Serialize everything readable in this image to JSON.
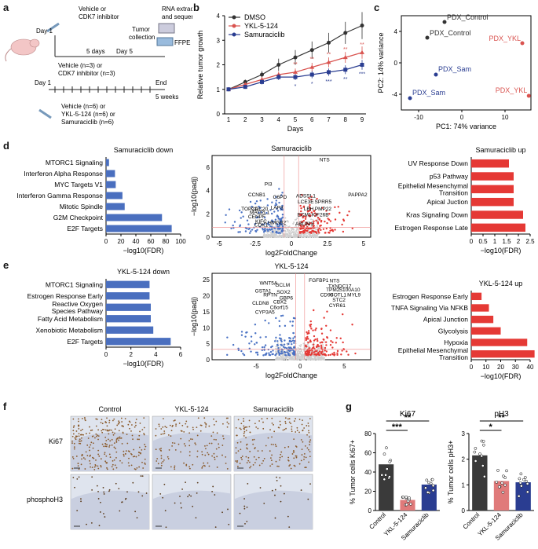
{
  "labels": {
    "a": "a",
    "b": "b",
    "c": "c",
    "d": "d",
    "e": "e",
    "f": "f",
    "g": "g"
  },
  "panel_a": {
    "day1_top": "Day 1",
    "treat_top": "Vehicle or\nCDK7 inhibitor",
    "five_days": "5 days",
    "day5": "Day 5",
    "rna": "RNA extraction\nand sequencing",
    "tumor_collection": "Tumor\ncollection",
    "ffpe": "FFPE IHC",
    "vehicle_n3": "Vehicle (n=3) or",
    "cdk7_n3": "CDK7 inhibitor (n=3)",
    "day1_bottom": "Day 1",
    "end": "End",
    "five_weeks": "5 weeks",
    "bottom_groups": [
      "Vehicle (n=6) or",
      "YKL-5-124 (n=6) or",
      "Samuraciclib (n=6)"
    ]
  },
  "colors": {
    "dmso": "#333333",
    "ykl": "#d9534f",
    "sam": "#2a3d91",
    "bar_blue": "#4a6fbf",
    "bar_red": "#e53935",
    "volc_gray": "#cfcfcf",
    "volc_blue": "#4a72c4",
    "volc_red": "#e53935",
    "ki67_control": "#3a3a3a",
    "ki67_ykl": "#e07a7a",
    "ki67_sam": "#2a3d91"
  },
  "chart_data": [
    {
      "id": "b",
      "type": "line",
      "ylabel": "Relative tumor growth",
      "xlabel": "Days",
      "x": [
        1,
        2,
        3,
        4,
        5,
        6,
        7,
        8,
        9
      ],
      "ylim": [
        0,
        4
      ],
      "yticks": [
        0,
        1,
        2,
        3,
        4
      ],
      "legend": "top-left",
      "series": [
        {
          "name": "DMSO",
          "values": [
            1.0,
            1.3,
            1.6,
            2.0,
            2.3,
            2.6,
            2.9,
            3.3,
            3.6
          ],
          "err": [
            0.05,
            0.1,
            0.15,
            0.25,
            0.3,
            0.35,
            0.4,
            0.45,
            0.55
          ]
        },
        {
          "name": "YKL-5-124",
          "values": [
            1.0,
            1.2,
            1.4,
            1.6,
            1.7,
            1.9,
            2.1,
            2.3,
            2.5
          ],
          "err": [
            0.05,
            0.08,
            0.1,
            0.12,
            0.15,
            0.18,
            0.2,
            0.22,
            0.25
          ]
        },
        {
          "name": "Samuraciclib",
          "values": [
            1.0,
            1.1,
            1.3,
            1.5,
            1.5,
            1.6,
            1.7,
            1.8,
            2.0
          ],
          "err": [
            0.05,
            0.08,
            0.1,
            0.12,
            0.12,
            0.15,
            0.15,
            0.18,
            0.2
          ]
        }
      ],
      "sig_red": [
        "",
        "",
        "",
        "",
        "**",
        "**",
        "**",
        "**",
        "**"
      ],
      "sig_blue": [
        "",
        "",
        "",
        "",
        "*",
        "*",
        "***",
        "**",
        "***"
      ]
    },
    {
      "id": "c",
      "type": "scatter",
      "xlabel": "PC1: 74% variance",
      "ylabel": "PC2: 14% variance",
      "xlim": [
        -14,
        16
      ],
      "ylim": [
        -6,
        6
      ],
      "xticks": [
        -10,
        0,
        10
      ],
      "yticks": [
        -4,
        0,
        4
      ],
      "points": [
        {
          "x": -4,
          "y": 5.2,
          "label": "PDX_Control",
          "color": "#333333"
        },
        {
          "x": -8,
          "y": 3.2,
          "label": "PDX_Control",
          "color": "#333333"
        },
        {
          "x": 14,
          "y": 2.5,
          "label": "PDX_YKL",
          "color": "#d9534f"
        },
        {
          "x": 15.5,
          "y": -4.2,
          "label": "PDX_YKL",
          "color": "#d9534f"
        },
        {
          "x": -6,
          "y": -1.5,
          "label": "PDX_Sam",
          "color": "#2a3d91"
        },
        {
          "x": -12,
          "y": -4.5,
          "label": "PDX_Sam",
          "color": "#2a3d91"
        }
      ]
    },
    {
      "id": "d_down",
      "type": "bar",
      "title": "Samuraciclib down",
      "xlabel": "−log10(FDR)",
      "xlim": [
        0,
        100
      ],
      "xticks": [
        0,
        20,
        40,
        60,
        80,
        100
      ],
      "categories": [
        "MTORC1 Signaling",
        "Interferon Alpha Response",
        "MYC Targets V1",
        "Interferon Gamma Response",
        "Mitotic Spindle",
        "G2M Checkpoint",
        "E2F Targets"
      ],
      "values": [
        4,
        12,
        13,
        22,
        25,
        75,
        88
      ]
    },
    {
      "id": "d_volcano",
      "type": "scatter",
      "title": "Samuraciclib",
      "xlabel": "log2FoldChange",
      "ylabel": "−log10(padj)",
      "xticks": [
        -5,
        -2.5,
        0,
        2.5,
        5
      ],
      "yticks": [
        0,
        2,
        4,
        6
      ],
      "genes": [
        "PI3",
        "CCNB1",
        "TOP2A",
        "CDC20",
        "MAD2L1",
        "KIFC",
        "CENPF",
        "CDK1",
        "G6PD",
        "LAP3",
        "HMGB2",
        "ADSSL1",
        "LCE3E",
        "LBH",
        "ECM1",
        "ABLIM3",
        "SPRR5",
        "PMP22",
        "KIF26B",
        "NTS",
        "PAPPA2"
      ]
    },
    {
      "id": "d_up",
      "type": "bar",
      "title": "Samuraciclib up",
      "xlabel": "−log10(FDR)",
      "xlim": [
        0,
        2.5
      ],
      "xticks": [
        0,
        0.5,
        1,
        1.5,
        2,
        2.5
      ],
      "categories": [
        "UV Response Down",
        "p53 Pathway",
        "Epithelial Mesenchymal\nTransition",
        "Apical Juction",
        "Kras Signaling Down",
        "Estrogen Response Late"
      ],
      "values": [
        1.6,
        1.8,
        1.8,
        1.8,
        2.2,
        2.3
      ]
    },
    {
      "id": "e_down",
      "type": "bar",
      "title": "YKL-5-124 down",
      "xlabel": "−log10(FDR)",
      "xlim": [
        0,
        6
      ],
      "xticks": [
        0,
        2,
        4,
        6
      ],
      "categories": [
        "MTORC1 Signaling",
        "Estrogen Response Early",
        "Reactive Oxygen\nSpecies Pathway",
        "Fatty Acid Metabolism",
        "Xenobiotic Metabolism",
        "E2F Targets"
      ],
      "values": [
        3.5,
        3.5,
        3.6,
        3.6,
        3.8,
        5.2
      ]
    },
    {
      "id": "e_volcano",
      "type": "scatter",
      "title": "YKL-5-124",
      "xlabel": "log2FoldChange",
      "ylabel": "−log10(padj)",
      "xticks": [
        -5,
        0,
        5
      ],
      "yticks": [
        0,
        5,
        10,
        15,
        20,
        25
      ],
      "genes": [
        "WNT5A",
        "GCLM",
        "GSTA1",
        "SOX2",
        "RPTN",
        "GBP6",
        "CBX2",
        "CLDN8",
        "C6orf15",
        "CYP3A5",
        "FGFBP1",
        "NTS",
        "TXNDC17",
        "TPM2",
        "S100A10",
        "CD99",
        "COTL1",
        "MYL9",
        "STC2",
        "CYR61"
      ]
    },
    {
      "id": "e_up",
      "type": "bar",
      "title": "YKL-5-124 up",
      "xlabel": "−log10(FDR)",
      "xlim": [
        0,
        40
      ],
      "xticks": [
        0,
        10,
        20,
        30,
        40
      ],
      "categories": [
        "Estrogen Response Early",
        "TNFA Signaling Via NFKB",
        "Apical Junction",
        "Glycolysis",
        "Hypoxia",
        "Epithelial Mesenchymal\nTransition"
      ],
      "values": [
        7,
        12,
        15,
        20,
        38,
        43
      ]
    },
    {
      "id": "g_ki67",
      "type": "bar",
      "title": "Ki67",
      "ylabel": "% Tumor cells Ki67+",
      "ylim": [
        0,
        80
      ],
      "yticks": [
        0,
        20,
        40,
        60,
        80
      ],
      "categories": [
        "Control",
        "YKL-5-124",
        "Samuraciclib"
      ],
      "values": [
        48,
        11,
        27
      ],
      "sig": [
        {
          "from": 0,
          "to": 1,
          "label": "***"
        },
        {
          "from": 0,
          "to": 2,
          "label": "**"
        }
      ]
    },
    {
      "id": "g_ph3",
      "type": "bar",
      "title": "pH3",
      "ylabel": "% Tumor cells pH3+",
      "ylim": [
        0,
        3
      ],
      "yticks": [
        0,
        1,
        2,
        3
      ],
      "categories": [
        "Control",
        "YKL-5-124",
        "Samuraciclib"
      ],
      "values": [
        2.15,
        1.15,
        1.1
      ],
      "sig": [
        {
          "from": 0,
          "to": 1,
          "label": "*"
        },
        {
          "from": 0,
          "to": 2,
          "label": "**"
        }
      ]
    }
  ],
  "panel_f": {
    "cols": [
      "Control",
      "YKL-5-124",
      "Samuraciclib"
    ],
    "rows": [
      "Ki67",
      "phosphoH3"
    ]
  }
}
